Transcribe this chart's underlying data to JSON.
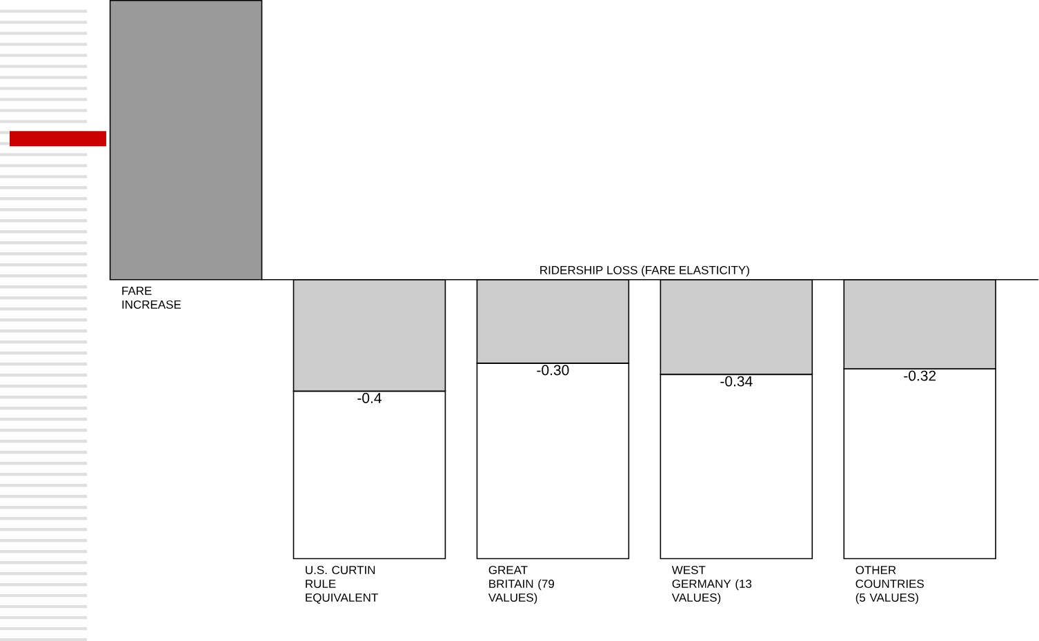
{
  "chart_data": {
    "type": "bar",
    "stacked": true,
    "categories": [
      "FARE INCREASE",
      "U.S. CURTIN RULE EQUIVALENT",
      "GREAT BRITAIN (79 VALUES)",
      "WEST GERMANY (13 VALUES)",
      "OTHER COUNTRIES (5 VALUES)"
    ],
    "series": [
      {
        "colors": [
          "#9a9a9a",
          "#cccccc",
          "#cccccc",
          "#cccccc",
          "#cccccc"
        ],
        "values": [
          1,
          -0.4,
          -0.3,
          -0.34,
          -0.32
        ],
        "value_labels": [
          null,
          "-0.4",
          "-0.30",
          "-0.34",
          "-0.32"
        ]
      },
      {
        "color": "#ffffff",
        "values": [
          null,
          -0.6,
          -0.7,
          -0.66,
          -0.68
        ]
      }
    ],
    "annotations": [
      "RIDERSHIP LOSS (FARE ELASTICITY)"
    ]
  }
}
